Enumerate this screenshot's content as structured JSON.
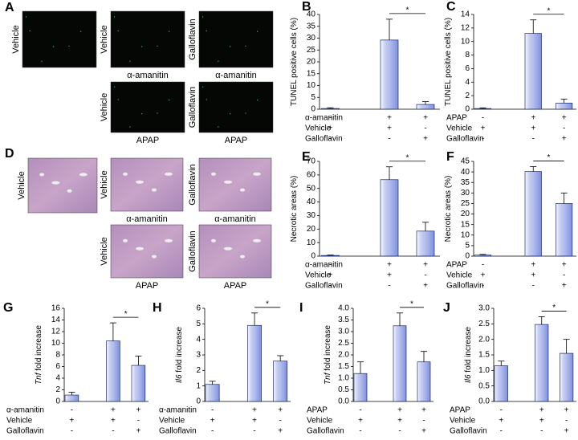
{
  "image_panels": [
    {
      "letter": "A",
      "kind": "fluorescence",
      "tiles": [
        {
          "side": "Vehicle"
        },
        {
          "side": "Vehicle",
          "caption": "α-amanitin"
        },
        {
          "side": "Galloflavin",
          "caption": "α-amanitin"
        },
        {
          "side": "Vehicle",
          "caption": "APAP"
        },
        {
          "side": "Galloflavin",
          "caption": "APAP"
        }
      ]
    },
    {
      "letter": "D",
      "kind": "histology",
      "tiles": [
        {
          "side": "Vehicle"
        },
        {
          "side": "Vehicle",
          "caption": "α-amanitin"
        },
        {
          "side": "Galloflavin",
          "caption": "α-amanitin"
        },
        {
          "side": "Vehicle",
          "caption": "APAP"
        },
        {
          "side": "Galloflavin",
          "caption": "APAP"
        }
      ]
    }
  ],
  "chart_data": [
    {
      "type": "bar",
      "panel": "B",
      "ylabel": [
        {
          "text": "TUNEL positive cells (%)"
        }
      ],
      "color": "#7f90e0",
      "ylim": [
        0,
        40
      ],
      "yticks": [
        0,
        5,
        10,
        15,
        20,
        25,
        30,
        35,
        40
      ],
      "values": [
        0.3,
        29.2,
        2.0
      ],
      "errors": [
        0.3,
        8.8,
        1.2
      ],
      "significance": {
        "pair": [
          1,
          2
        ],
        "label": "*"
      },
      "rows": [
        {
          "label": "α-amanitin",
          "marks": [
            "-",
            "+",
            "+"
          ]
        },
        {
          "label": "Vehicle",
          "marks": [
            "+",
            "+",
            "-"
          ]
        },
        {
          "label": "Galloflavin",
          "marks": [
            "-",
            "-",
            "+"
          ]
        }
      ]
    },
    {
      "type": "bar",
      "panel": "C",
      "ylabel": [
        {
          "text": "TUNEL positive cells (%)"
        }
      ],
      "color": "#7f90e0",
      "ylim": [
        0,
        14
      ],
      "yticks": [
        0,
        2,
        4,
        6,
        8,
        10,
        12,
        14
      ],
      "values": [
        0.1,
        11.2,
        0.9
      ],
      "errors": [
        0.1,
        2.0,
        0.6
      ],
      "significance": {
        "pair": [
          1,
          2
        ],
        "label": "*"
      },
      "rows": [
        {
          "label": "APAP",
          "marks": [
            "-",
            "+",
            "+"
          ]
        },
        {
          "label": "Vehicle",
          "marks": [
            "+",
            "+",
            "-"
          ]
        },
        {
          "label": "Galloflavin",
          "marks": [
            "-",
            "-",
            "+"
          ]
        }
      ]
    },
    {
      "type": "bar",
      "panel": "E",
      "ylabel": [
        {
          "text": "Necrotic areas (%)"
        }
      ],
      "color": "#7f90e0",
      "ylim": [
        0,
        70
      ],
      "yticks": [
        0,
        10,
        20,
        30,
        40,
        50,
        60,
        70
      ],
      "values": [
        0.5,
        56.5,
        18.5
      ],
      "errors": [
        0.3,
        9.5,
        6.5
      ],
      "significance": {
        "pair": [
          1,
          2
        ],
        "label": "*"
      },
      "rows": [
        {
          "label": "α-amanitin",
          "marks": [
            "-",
            "+",
            "+"
          ]
        },
        {
          "label": "Vehicle",
          "marks": [
            "+",
            "+",
            "-"
          ]
        },
        {
          "label": "Galloflavin",
          "marks": [
            "-",
            "-",
            "+"
          ]
        }
      ]
    },
    {
      "type": "bar",
      "panel": "F",
      "ylabel": [
        {
          "text": "Necrotic areas (%)"
        }
      ],
      "color": "#7f90e0",
      "ylim": [
        0,
        45
      ],
      "yticks": [
        0,
        5,
        10,
        15,
        20,
        25,
        30,
        35,
        40,
        45
      ],
      "values": [
        0.5,
        40.2,
        25
      ],
      "errors": [
        0.3,
        2.3,
        5
      ],
      "significance": {
        "pair": [
          1,
          2
        ],
        "label": "*"
      },
      "rows": [
        {
          "label": "APAP",
          "marks": [
            "-",
            "+",
            "+"
          ]
        },
        {
          "label": "Vehicle",
          "marks": [
            "+",
            "+",
            "-"
          ]
        },
        {
          "label": "Galloflavin",
          "marks": [
            "-",
            "-",
            "+"
          ]
        }
      ]
    },
    {
      "type": "bar",
      "panel": "G",
      "ylabel": [
        {
          "text": "Tnf",
          "italic": true
        },
        {
          "text": " fold increase"
        }
      ],
      "color": "#7f90e0",
      "ylim": [
        0,
        16
      ],
      "yticks": [
        0,
        2,
        4,
        6,
        8,
        10,
        12,
        14,
        16
      ],
      "values": [
        1.1,
        10.4,
        6.2
      ],
      "errors": [
        0.5,
        3.1,
        1.6
      ],
      "significance": {
        "pair": [
          1,
          2
        ],
        "label": "*"
      },
      "rows": [
        {
          "label": "α-amanitin",
          "marks": [
            "-",
            "+",
            "+"
          ]
        },
        {
          "label": "Vehicle",
          "marks": [
            "+",
            "+",
            "-"
          ]
        },
        {
          "label": "Galloflavin",
          "marks": [
            "-",
            "-",
            "+"
          ]
        }
      ]
    },
    {
      "type": "bar",
      "panel": "H",
      "ylabel": [
        {
          "text": "Il6",
          "italic": true
        },
        {
          "text": " fold increase"
        }
      ],
      "color": "#7f90e0",
      "ylim": [
        0,
        6
      ],
      "yticks": [
        0,
        1,
        2,
        3,
        4,
        5,
        6
      ],
      "values": [
        1.1,
        4.9,
        2.6
      ],
      "errors": [
        0.2,
        0.8,
        0.35
      ],
      "significance": {
        "pair": [
          1,
          2
        ],
        "label": "*"
      },
      "rows": [
        {
          "label": "α-amanitin",
          "marks": [
            "-",
            "+",
            "+"
          ]
        },
        {
          "label": "Vehicle",
          "marks": [
            "+",
            "+",
            "-"
          ]
        },
        {
          "label": "Galloflavin",
          "marks": [
            "-",
            "-",
            "+"
          ]
        }
      ]
    },
    {
      "type": "bar",
      "panel": "I",
      "ylabel": [
        {
          "text": "Tnf",
          "italic": true
        },
        {
          "text": " fold increase"
        }
      ],
      "color": "#7f90e0",
      "ylim": [
        0,
        4
      ],
      "yticks": [
        {
          "value": 0,
          "label": "0.0"
        },
        0.5,
        {
          "value": 1,
          "label": "1.0"
        },
        1.5,
        {
          "value": 2,
          "label": "2.0"
        },
        2.5,
        {
          "value": 3,
          "label": "3.0"
        },
        3.5,
        {
          "value": 4,
          "label": "4.0"
        }
      ],
      "values": [
        1.2,
        3.25,
        1.7
      ],
      "errors": [
        0.5,
        0.55,
        0.45
      ],
      "significance": {
        "pair": [
          1,
          2
        ],
        "label": "*"
      },
      "rows": [
        {
          "label": "APAP",
          "marks": [
            "-",
            "+",
            "+"
          ]
        },
        {
          "label": "Vehicle",
          "marks": [
            "+",
            "+",
            "-"
          ]
        },
        {
          "label": "Galloflavin",
          "marks": [
            "-",
            "-",
            "+"
          ]
        }
      ]
    },
    {
      "type": "bar",
      "panel": "J",
      "ylabel": [
        {
          "text": "Il6",
          "italic": true
        },
        {
          "text": " fold increase"
        }
      ],
      "color": "#7f90e0",
      "ylim": [
        0,
        3
      ],
      "yticks": [
        {
          "value": 0,
          "label": "0.0"
        },
        0.5,
        {
          "value": 1,
          "label": "1.0"
        },
        1.5,
        {
          "value": 2,
          "label": "2.0"
        },
        2.5,
        {
          "value": 3,
          "label": "3.0"
        }
      ],
      "values": [
        1.15,
        2.48,
        1.55
      ],
      "errors": [
        0.15,
        0.25,
        0.45
      ],
      "significance": {
        "pair": [
          1,
          2
        ],
        "label": "*"
      },
      "rows": [
        {
          "label": "APAP",
          "marks": [
            "-",
            "+",
            "+"
          ]
        },
        {
          "label": "Vehicle",
          "marks": [
            "+",
            "+",
            "-"
          ]
        },
        {
          "label": "Galloflavin",
          "marks": [
            "-",
            "-",
            "+"
          ]
        }
      ]
    }
  ]
}
